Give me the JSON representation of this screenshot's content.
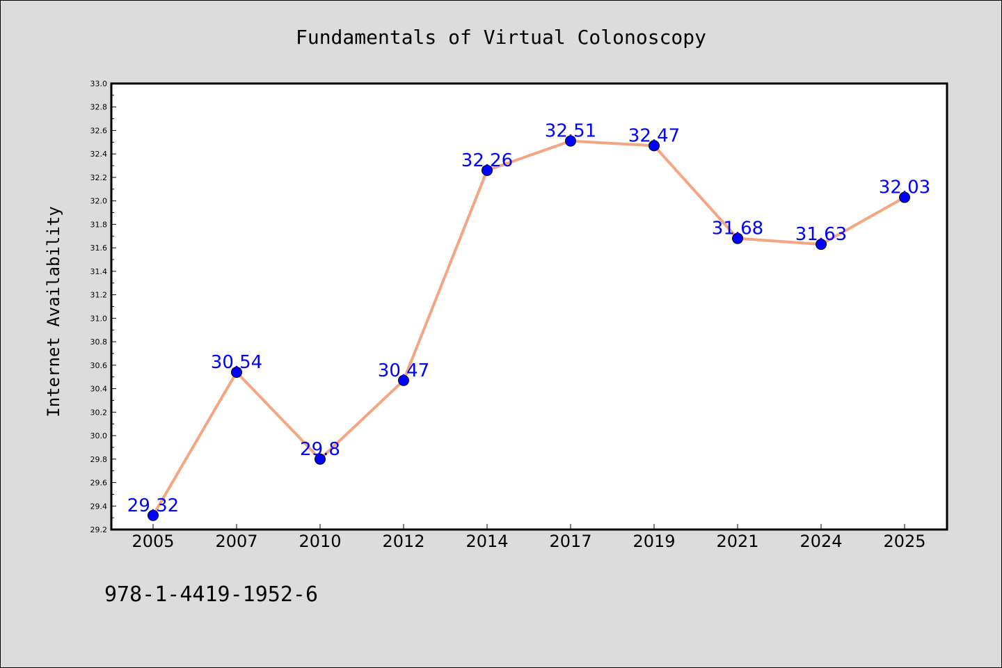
{
  "chart_data": {
    "type": "line",
    "title": "Fundamentals of Virtual Colonoscopy",
    "xlabel": "",
    "ylabel": "Internet Availability",
    "categories": [
      "2005",
      "2007",
      "2010",
      "2012",
      "2014",
      "2017",
      "2019",
      "2021",
      "2024",
      "2025"
    ],
    "values": [
      29.32,
      30.54,
      29.8,
      30.47,
      32.26,
      32.51,
      32.47,
      31.68,
      31.63,
      32.03
    ],
    "data_labels": [
      "29.32",
      "30.54",
      "29.8",
      "30.47",
      "32.26",
      "32.51",
      "32.47",
      "31.68",
      "31.63",
      "32.03"
    ],
    "ylim": [
      29.2,
      33.0
    ],
    "yticks": [
      "29.2",
      "29.4",
      "29.6",
      "29.8",
      "30.0",
      "30.2",
      "30.4",
      "30.6",
      "30.8",
      "31.0",
      "31.2",
      "31.4",
      "31.6",
      "31.8",
      "32.0",
      "32.2",
      "32.4",
      "32.6",
      "32.8",
      "33.0"
    ],
    "grid": false,
    "colors": {
      "line": "#f4a582",
      "marker": "#0000ff",
      "label": "#0000ff",
      "plot_bg": "#ffffff",
      "page_bg": "#dcdcdc"
    }
  },
  "footer": {
    "text": "978-1-4419-1952-6"
  }
}
